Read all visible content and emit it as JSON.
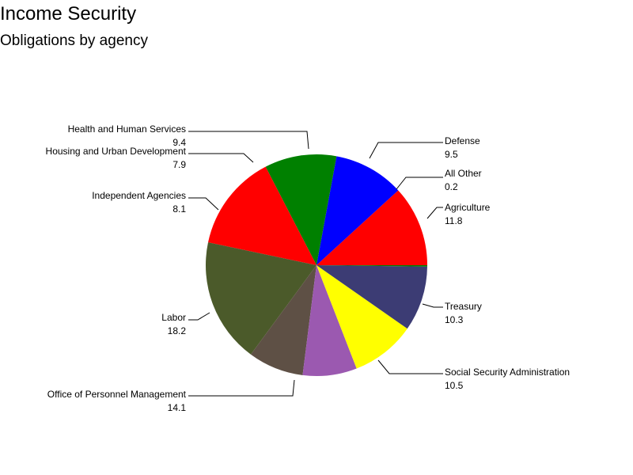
{
  "chart_data": {
    "type": "pie",
    "title": "Income Security",
    "subtitle": "Obligations by agency",
    "slices": [
      {
        "label": "Agriculture",
        "value": 11.8,
        "color": "#ff0000"
      },
      {
        "label": "Treasury",
        "value": 10.3,
        "color": "#0000ff"
      },
      {
        "label": "Social Security Administration",
        "value": 10.5,
        "color": "#008000"
      },
      {
        "label": "Office of Personnel Management",
        "value": 14.1,
        "color": "#ff0000"
      },
      {
        "label": "Labor",
        "value": 18.2,
        "color": "#4b5a2a"
      },
      {
        "label": "Independent Agencies",
        "value": 8.1,
        "color": "#5e5045"
      },
      {
        "label": "Housing and Urban Development",
        "value": 7.9,
        "color": "#9b59b0"
      },
      {
        "label": "Health and Human Services",
        "value": 9.4,
        "color": "#ffff00"
      },
      {
        "label": "Defense",
        "value": 9.5,
        "color": "#3c3c74"
      },
      {
        "label": "All Other",
        "value": 0.2,
        "color": "#008000"
      }
    ],
    "value_labels": [
      "11.8",
      "10.3",
      "10.5",
      "14.1",
      "18.2",
      "8.1",
      "7.9",
      "9.4",
      "9.5",
      "0.2"
    ]
  }
}
